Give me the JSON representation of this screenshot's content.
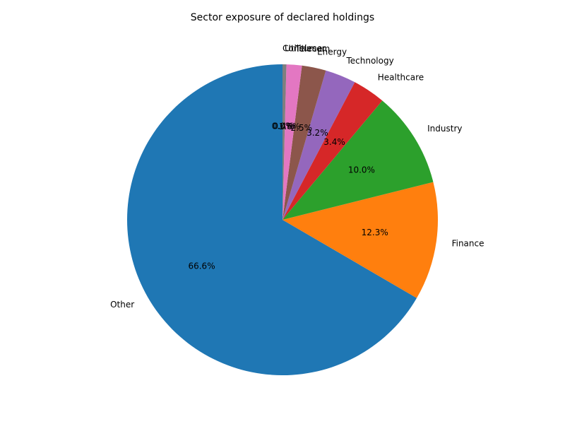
{
  "chart_data": {
    "type": "pie",
    "title": "Sector exposure of declared holdings",
    "start_angle_deg": 90,
    "direction": "counterclockwise",
    "slices": [
      {
        "label": "Other",
        "value": 66.6,
        "pct_label": "66.6%",
        "color": "#1f77b4"
      },
      {
        "label": "Finance",
        "value": 12.3,
        "pct_label": "12.3%",
        "color": "#ff7f0e"
      },
      {
        "label": "Industry",
        "value": 10.0,
        "pct_label": "10.0%",
        "color": "#2ca02c"
      },
      {
        "label": "Healthcare",
        "value": 3.4,
        "pct_label": "3.4%",
        "color": "#d62728"
      },
      {
        "label": "Technology",
        "value": 3.2,
        "pct_label": "3.2%",
        "color": "#9467bd"
      },
      {
        "label": "Energy",
        "value": 2.5,
        "pct_label": "2.5%",
        "color": "#8c564b"
      },
      {
        "label": "Telecom",
        "value": 1.6,
        "pct_label": "1.6%",
        "color": "#e377c2"
      },
      {
        "label": "Utilities",
        "value": 0.4,
        "pct_label": "0.4%",
        "color": "#7f7f7f"
      },
      {
        "label": "Consumer",
        "value": 0.0,
        "pct_label": "0.0%",
        "color": "#bcbd22"
      }
    ]
  }
}
